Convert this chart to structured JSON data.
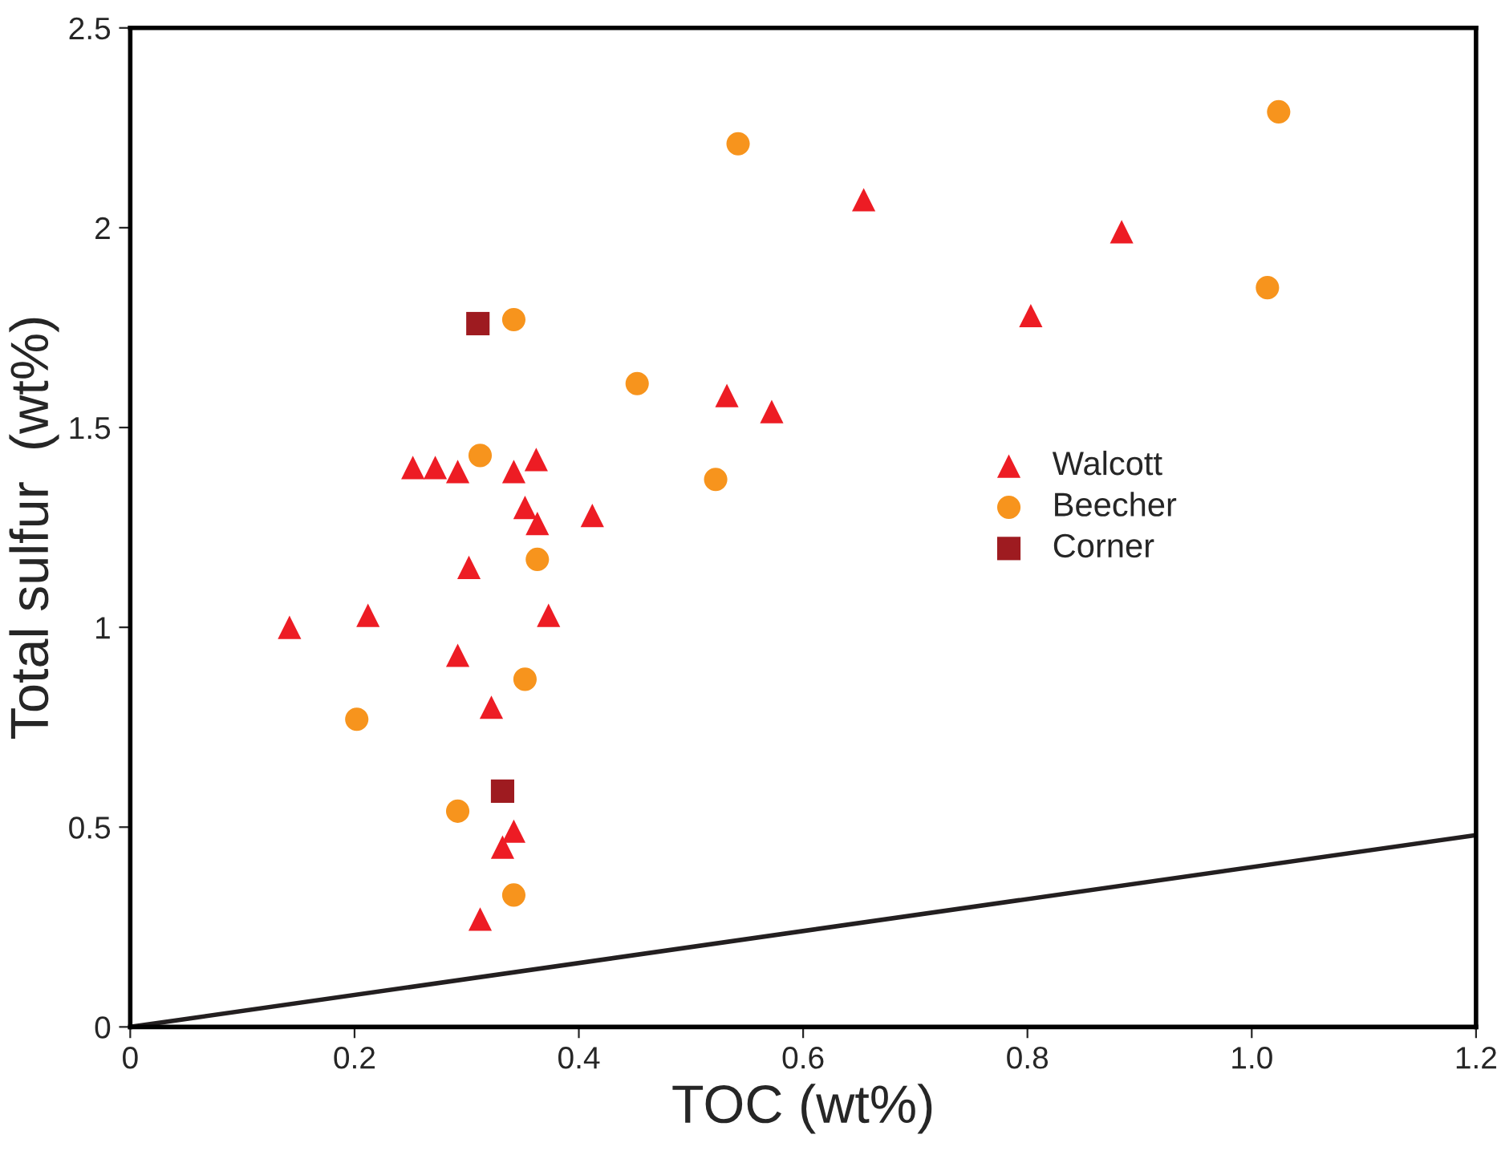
{
  "chart_data": {
    "type": "scatter",
    "xlabel": "TOC (wt%)",
    "ylabel": "Total sulfur  (wt%)",
    "xlim": [
      0,
      1.2
    ],
    "ylim": [
      0,
      2.5
    ],
    "xticks": [
      0,
      0.2,
      0.4,
      0.6,
      0.8,
      {
        "value": 1.0,
        "label": "1.0"
      },
      1.2
    ],
    "yticks": [
      0,
      0.5,
      1,
      1.5,
      2,
      2.5
    ],
    "grid": false,
    "legend": "right",
    "series": [
      {
        "name": "Walcott",
        "color": "#ed1c24",
        "marker": "triangle",
        "x": [
          0.142,
          0.212,
          0.252,
          0.272,
          0.292,
          0.342,
          0.362,
          0.352,
          0.363,
          0.412,
          0.302,
          0.373,
          0.292,
          0.322,
          0.342,
          0.332,
          0.312,
          0.532,
          0.572,
          0.654,
          0.803,
          0.884
        ],
        "values": [
          1.0,
          1.03,
          1.4,
          1.4,
          1.39,
          1.39,
          1.42,
          1.3,
          1.26,
          1.28,
          1.15,
          1.03,
          0.93,
          0.8,
          0.49,
          0.45,
          0.27,
          1.58,
          1.54,
          2.07,
          1.78,
          1.99
        ]
      },
      {
        "name": "Beecher",
        "color": "#f7941d",
        "marker": "circle",
        "x": [
          0.542,
          1.024,
          1.014,
          0.342,
          0.452,
          0.312,
          0.522,
          0.363,
          0.352,
          0.202,
          0.292,
          0.342
        ],
        "values": [
          2.21,
          2.29,
          1.85,
          1.77,
          1.61,
          1.43,
          1.37,
          1.17,
          0.87,
          0.77,
          0.54,
          0.33
        ]
      },
      {
        "name": "Corner",
        "color": "#9e1b20",
        "marker": "square",
        "x": [
          0.31,
          0.332
        ],
        "values": [
          1.76,
          0.59
        ]
      },
      {
        "type": "line",
        "color": "#231f20",
        "marker": "none",
        "line_style": "solid",
        "x": [
          0,
          1.2
        ],
        "values": [
          0,
          0.48
        ]
      }
    ]
  }
}
